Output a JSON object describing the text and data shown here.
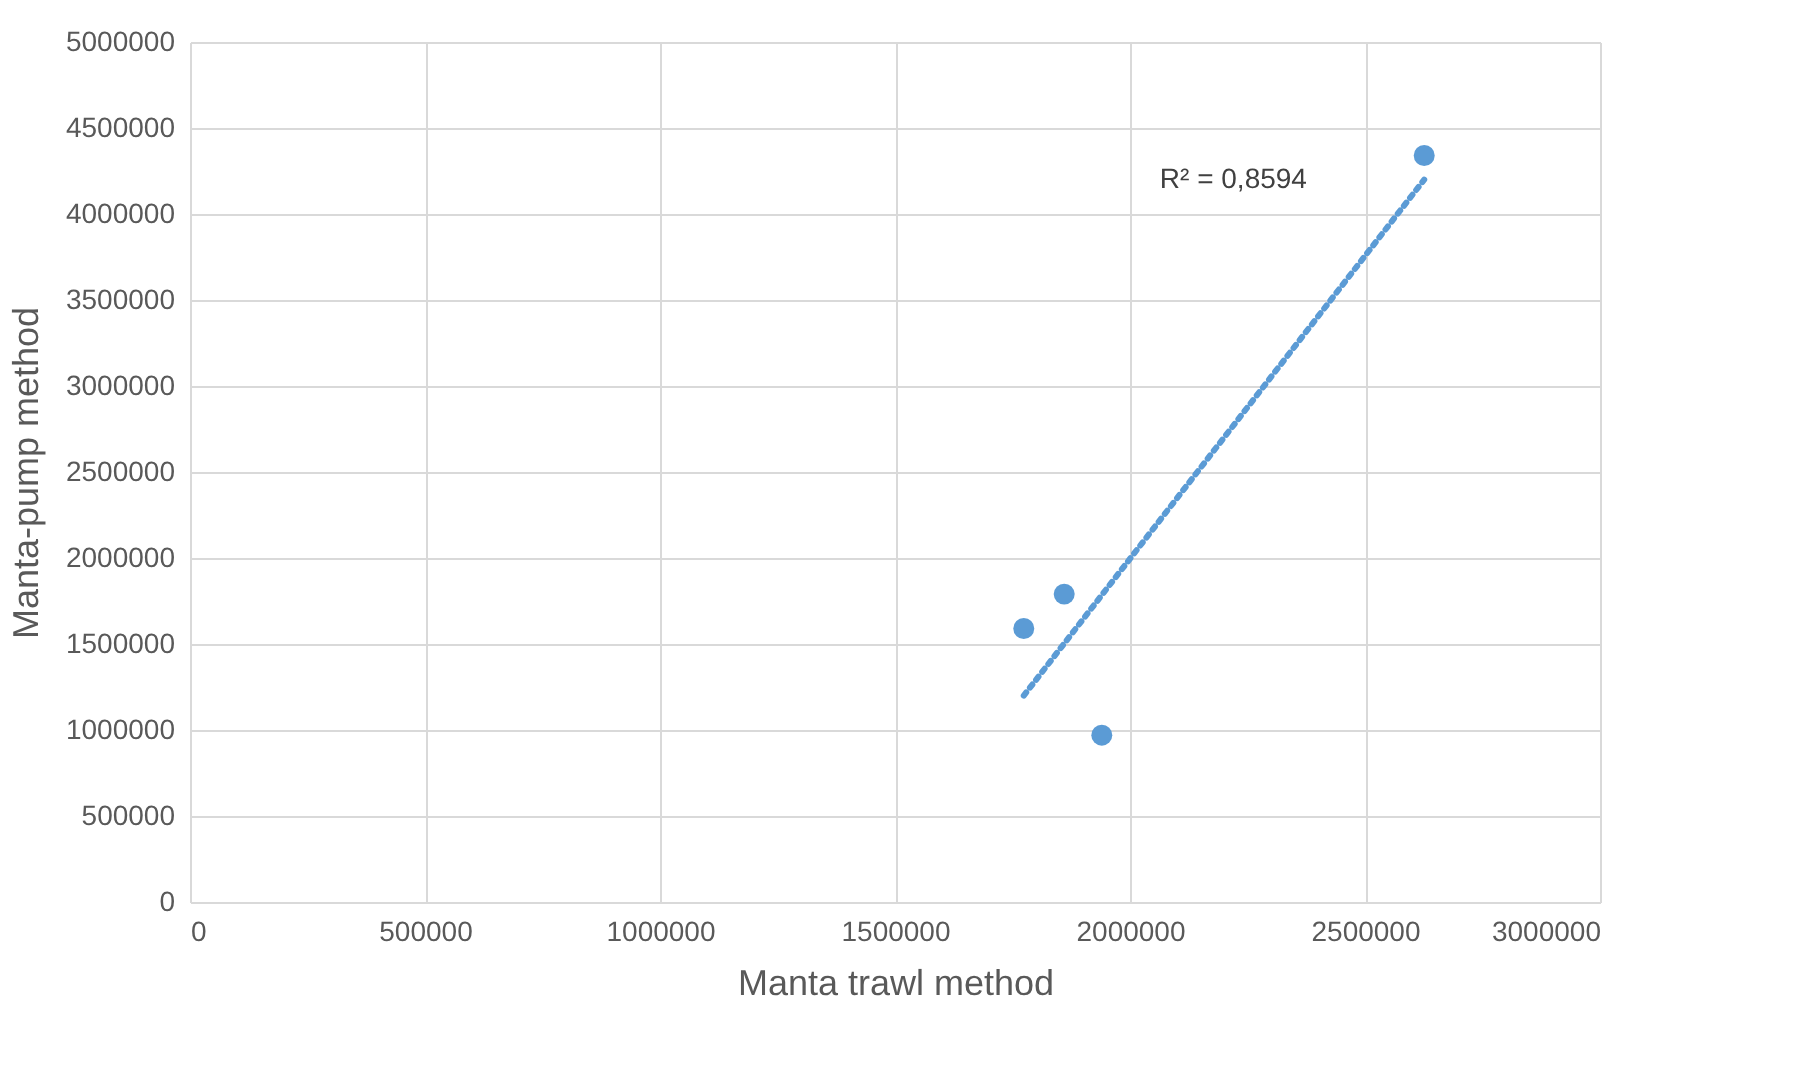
{
  "chart_data": {
    "type": "scatter",
    "xlabel": "Manta trawl method",
    "ylabel": "Manta-pump method",
    "x": [
      1774000,
      1860000,
      1940000,
      2626000
    ],
    "series": [
      {
        "color": "#5b9bd5",
        "values": [
          1590000,
          1790000,
          970000,
          4340000
        ],
        "marker": "circle"
      },
      {
        "type": "line",
        "color": "#5b9bd5",
        "x": [
          1774000,
          2626000
        ],
        "values": [
          1200000,
          4200000
        ],
        "line_style": "dotted",
        "marker": "none"
      }
    ],
    "annotations": [
      "R² = 0,8594"
    ],
    "xlim": [
      0,
      3000000
    ],
    "xticks": [
      0,
      500000,
      1000000,
      1500000,
      2000000,
      2500000,
      3000000
    ],
    "ylim": [
      0,
      5000000
    ],
    "yticks": [
      0,
      500000,
      1000000,
      1500000,
      2000000,
      2500000,
      3000000,
      3500000,
      4000000,
      4500000,
      5000000
    ],
    "grid": true
  }
}
